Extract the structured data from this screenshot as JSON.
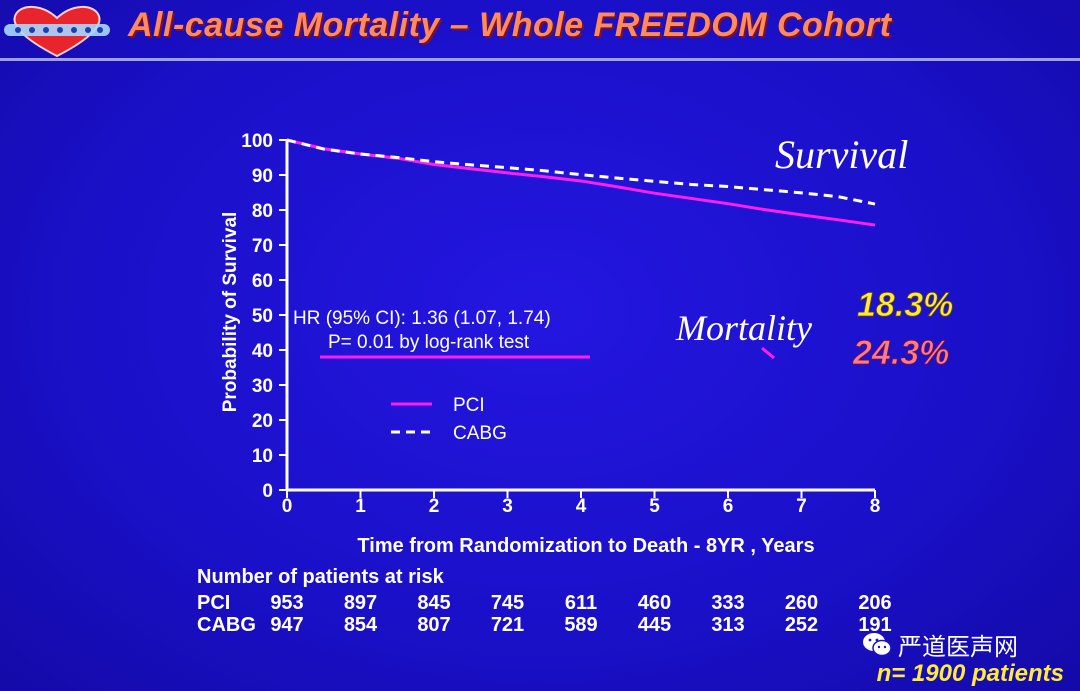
{
  "title": "All-cause Mortality – Whole FREEDOM Cohort",
  "colors": {
    "pci": "#ff1ef0",
    "cabg": "#ffffff",
    "accent_title": "#ff8a5c",
    "yellow": "#ffea3b",
    "pink": "#ff7a8a"
  },
  "chart_data": {
    "type": "line",
    "title": "All-cause Mortality – Whole FREEDOM Cohort",
    "xlabel": "Time from Randomization to  Death - 8YR , Years",
    "ylabel": "Probability of Survival",
    "xlim": [
      0,
      8
    ],
    "ylim": [
      0,
      100
    ],
    "x_ticks": [
      "0",
      "1",
      "2",
      "3",
      "4",
      "5",
      "6",
      "7",
      "8"
    ],
    "y_ticks": [
      "0",
      "10",
      "20",
      "30",
      "40",
      "50",
      "60",
      "70",
      "80",
      "90",
      "100"
    ],
    "series": [
      {
        "name": "PCI",
        "style": "solid",
        "color": "#ff1ef0",
        "x": [
          0,
          0.5,
          1,
          1.5,
          2,
          2.5,
          3,
          3.5,
          4,
          4.5,
          5,
          5.5,
          6,
          6.5,
          7,
          7.5,
          8
        ],
        "y": [
          100,
          97.5,
          96,
          94.8,
          93,
          91.8,
          90.6,
          89.5,
          88.3,
          86.6,
          84.8,
          83.3,
          81.8,
          80.1,
          78.6,
          77.2,
          75.7
        ]
      },
      {
        "name": "CABG",
        "style": "dashed",
        "color": "#ffffff",
        "x": [
          0,
          0.5,
          1,
          1.5,
          2,
          2.5,
          3,
          3.5,
          4,
          4.5,
          5,
          5.5,
          6,
          6.5,
          7,
          7.5,
          8
        ],
        "y": [
          100,
          97.4,
          96,
          95,
          93.8,
          92.9,
          92.1,
          91.2,
          90.1,
          89.1,
          88.2,
          87.3,
          86.7,
          85.8,
          84.9,
          83.8,
          81.7
        ]
      }
    ],
    "legend": [
      "PCI",
      "CABG"
    ],
    "annotations": {
      "hr": "HR (95% CI): 1.36 (1.07, 1.74)",
      "p": "P= 0.01  by log-rank test",
      "survival": "Survival",
      "mortality": "Mortality",
      "cabg_mortality": "18.3%",
      "pci_mortality": "24.3%"
    },
    "at_risk": {
      "title": "Number of patients at risk",
      "rows": [
        {
          "label": "PCI",
          "values": [
            "953",
            "897",
            "845",
            "745",
            "611",
            "460",
            "333",
            "260",
            "206"
          ]
        },
        {
          "label": "CABG",
          "values": [
            "947",
            "854",
            "807",
            "721",
            "589",
            "445",
            "313",
            "252",
            "191"
          ]
        }
      ]
    }
  },
  "watermark": "严道医声网",
  "footer": "n= 1900 patients"
}
